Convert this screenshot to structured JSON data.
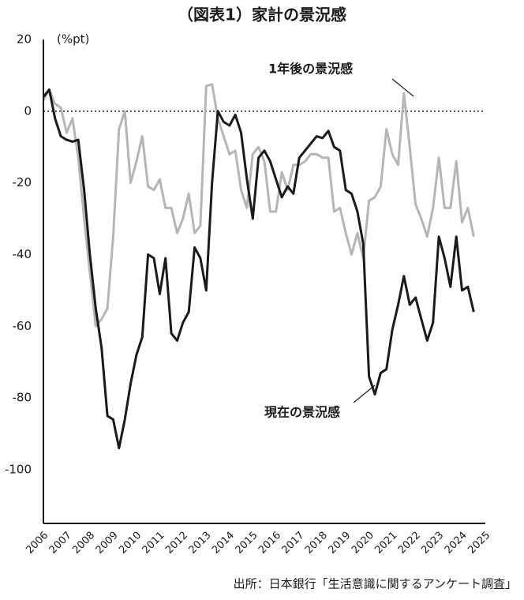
{
  "chart_data": {
    "type": "line",
    "title": "（図表1）家計の景況感",
    "y_unit": "(%pt)",
    "source": "出所：日本銀行「生活意識に関するアンケート調査」",
    "x": [
      2006,
      2006.25,
      2006.5,
      2006.75,
      2007,
      2007.25,
      2007.5,
      2007.75,
      2008,
      2008.25,
      2008.5,
      2008.75,
      2009,
      2009.25,
      2009.5,
      2009.75,
      2010,
      2010.25,
      2010.5,
      2010.75,
      2011,
      2011.25,
      2011.5,
      2011.75,
      2012,
      2012.25,
      2012.5,
      2012.75,
      2013,
      2013.25,
      2013.5,
      2013.75,
      2014,
      2014.25,
      2014.5,
      2014.75,
      2015,
      2015.25,
      2015.5,
      2015.75,
      2016,
      2016.25,
      2016.5,
      2016.75,
      2017,
      2017.25,
      2017.5,
      2017.75,
      2018,
      2018.25,
      2018.5,
      2018.75,
      2019,
      2019.25,
      2019.5,
      2019.75,
      2020,
      2020.25,
      2020.5,
      2020.75,
      2021,
      2021.25,
      2021.5,
      2021.75,
      2022,
      2022.25,
      2022.5,
      2022.75,
      2023,
      2023.25,
      2023.5,
      2023.75,
      2024,
      2024.25,
      2024.5
    ],
    "series": [
      {
        "name": "1年後の景況感",
        "color": "#b5b5b5",
        "values": [
          3,
          6,
          2,
          1,
          -6,
          -2,
          -13,
          -30,
          -45,
          -60,
          -58,
          -55,
          -35,
          -5,
          0,
          -20,
          -14,
          -7,
          -21,
          -22,
          -19,
          -27,
          -27,
          -34,
          -30,
          -23,
          -34,
          -32,
          7,
          7.5,
          -2,
          -7,
          -12,
          -11,
          -22,
          -27,
          -12,
          -10,
          -14,
          -28,
          -28,
          -17,
          -22,
          -15,
          -15,
          -14,
          -12,
          -12,
          -13,
          -13,
          -28,
          -27,
          -34,
          -40,
          -34,
          -41,
          -25,
          -24,
          -21,
          -5,
          -12,
          -15,
          5,
          -10,
          -26,
          -30,
          -35,
          -27,
          -13,
          -27,
          -27,
          -14,
          -31,
          -27,
          -35
        ]
      },
      {
        "name": "現在の景況感",
        "color": "#1a1a1a",
        "values": [
          4,
          6,
          -2,
          -7,
          -8,
          -8.5,
          -8,
          -22,
          -40,
          -55,
          -66,
          -85,
          -86,
          -94,
          -86,
          -76,
          -68,
          -63,
          -40,
          -41,
          -51,
          -41,
          -62,
          -64,
          -59,
          -56,
          -38,
          -41,
          -50,
          -20,
          0,
          -3,
          -4,
          -1,
          -6,
          -19,
          -30,
          -13,
          -11,
          -14,
          -19,
          -24,
          -21,
          -23,
          -13,
          -11,
          -9,
          -7,
          -7.5,
          -5.5,
          -10,
          -11,
          -22,
          -23,
          -28,
          -37,
          -74,
          -79,
          -73,
          -72,
          -61,
          -54,
          -46,
          -54,
          -52,
          -58,
          -64,
          -59,
          -35,
          -41,
          -49,
          -35,
          -50,
          -49,
          -56
        ]
      }
    ],
    "xlim": [
      2006,
      2025
    ],
    "xticks": [
      2006,
      2007,
      2008,
      2009,
      2010,
      2011,
      2012,
      2013,
      2014,
      2015,
      2016,
      2017,
      2018,
      2019,
      2020,
      2021,
      2022,
      2023,
      2024,
      2025
    ],
    "ylim": [
      -115,
      20
    ],
    "yticks": [
      20,
      0,
      -20,
      -40,
      -60,
      -80,
      -100
    ],
    "reference_line": 0
  }
}
